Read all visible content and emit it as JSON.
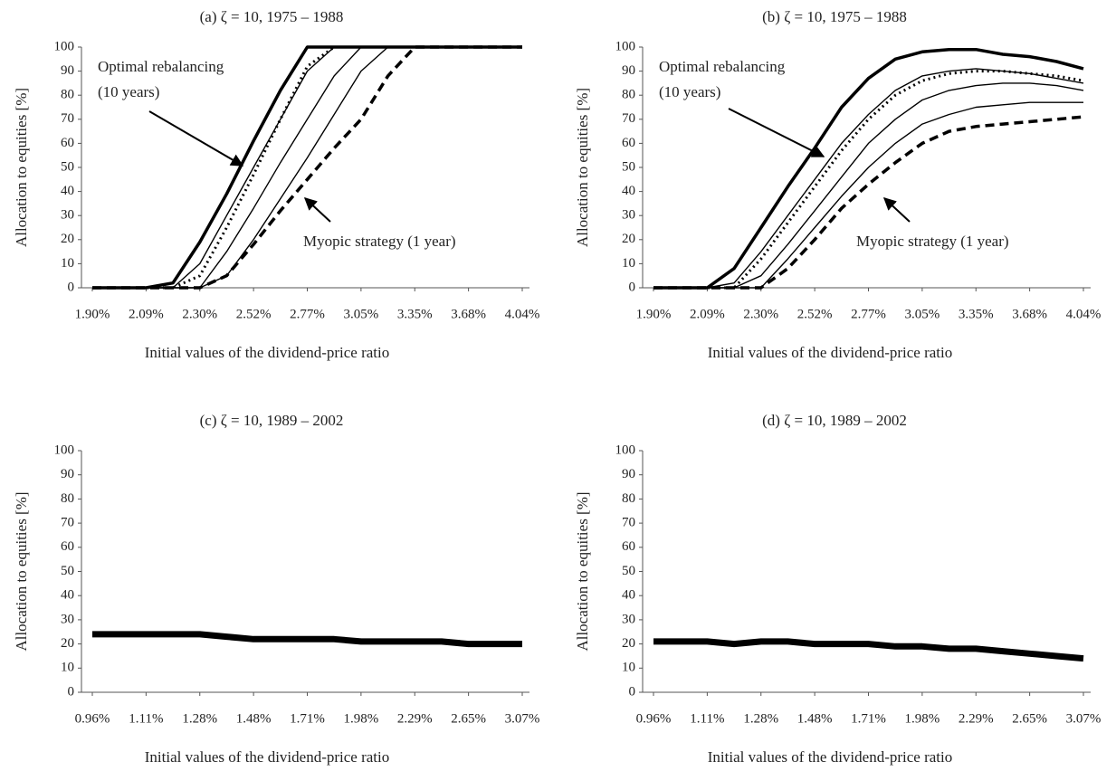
{
  "chart_data": [
    {
      "type": "line",
      "title": "(a) ζ = 10, 1975 – 1988",
      "xlabel": "Initial values of the dividend-price ratio",
      "ylabel": "Allocation to equities [%]",
      "categories": [
        "1.90%",
        null,
        "2.09%",
        null,
        "2.30%",
        null,
        "2.52%",
        null,
        "2.77%",
        null,
        "3.05%",
        null,
        "3.35%",
        null,
        "3.68%",
        null,
        "4.04%"
      ],
      "ylim": [
        0,
        100
      ],
      "yticks": [
        0,
        10,
        20,
        30,
        40,
        50,
        60,
        70,
        80,
        90,
        100
      ],
      "annotations": [
        "Optimal rebalancing",
        "(10 years)",
        "Myopic strategy (1 year)"
      ],
      "series": [
        {
          "color": "#000000",
          "style": "thick",
          "values": [
            0,
            0,
            0,
            2,
            19,
            39,
            61,
            82,
            100,
            100,
            100,
            100,
            100,
            100,
            100,
            100,
            100
          ]
        },
        {
          "color": "#000000",
          "style": "thin",
          "values": [
            0,
            0,
            0,
            0,
            10,
            30,
            50,
            70,
            90,
            100,
            100,
            100,
            100,
            100,
            100,
            100,
            100
          ]
        },
        {
          "color": "#000000",
          "style": "dotted",
          "values": [
            0,
            0,
            0,
            0,
            5,
            25,
            47,
            70,
            92,
            100,
            100,
            100,
            100,
            100,
            100,
            100,
            100
          ]
        },
        {
          "color": "#000000",
          "style": "thin",
          "values": [
            0,
            0,
            0,
            0,
            0,
            15,
            33,
            52,
            70,
            88,
            100,
            100,
            100,
            100,
            100,
            100,
            100
          ]
        },
        {
          "color": "#000000",
          "style": "thin",
          "values": [
            0,
            0,
            0,
            0,
            0,
            5,
            20,
            37,
            54,
            72,
            90,
            100,
            100,
            100,
            100,
            100,
            100
          ]
        },
        {
          "color": "#000000",
          "style": "dashed",
          "values": [
            0,
            0,
            0,
            0,
            0,
            5,
            18,
            32,
            45,
            58,
            70,
            88,
            100,
            100,
            100,
            100,
            100
          ]
        }
      ]
    },
    {
      "type": "line",
      "title": "(b) ζ = 10, 1975 – 1988",
      "xlabel": "Initial values of the dividend-price ratio",
      "ylabel": "Allocation to equities [%]",
      "categories": [
        "1.90%",
        null,
        "2.09%",
        null,
        "2.30%",
        null,
        "2.52%",
        null,
        "2.77%",
        null,
        "3.05%",
        null,
        "3.35%",
        null,
        "3.68%",
        null,
        "4.04%"
      ],
      "ylim": [
        0,
        100
      ],
      "yticks": [
        0,
        10,
        20,
        30,
        40,
        50,
        60,
        70,
        80,
        90,
        100
      ],
      "annotations": [
        "Optimal rebalancing",
        "(10 years)",
        "Myopic strategy (1 year)"
      ],
      "series": [
        {
          "color": "#000000",
          "style": "thick",
          "values": [
            0,
            0,
            0,
            8,
            25,
            42,
            58,
            75,
            87,
            95,
            98,
            99,
            99,
            97,
            96,
            94,
            91
          ]
        },
        {
          "color": "#000000",
          "style": "thin",
          "values": [
            0,
            0,
            0,
            2,
            15,
            30,
            45,
            60,
            72,
            82,
            88,
            90,
            91,
            90,
            89,
            87,
            85
          ]
        },
        {
          "color": "#000000",
          "style": "dotted",
          "values": [
            0,
            0,
            0,
            0,
            12,
            27,
            42,
            57,
            70,
            80,
            86,
            89,
            90,
            90,
            89,
            88,
            86
          ]
        },
        {
          "color": "#000000",
          "style": "thin",
          "values": [
            0,
            0,
            0,
            0,
            5,
            18,
            32,
            46,
            60,
            70,
            78,
            82,
            84,
            85,
            85,
            84,
            82
          ]
        },
        {
          "color": "#000000",
          "style": "thin",
          "values": [
            0,
            0,
            0,
            0,
            0,
            12,
            25,
            38,
            50,
            60,
            68,
            72,
            75,
            76,
            77,
            77,
            77
          ]
        },
        {
          "color": "#000000",
          "style": "dashed",
          "values": [
            0,
            0,
            0,
            0,
            0,
            8,
            20,
            33,
            43,
            52,
            60,
            65,
            67,
            68,
            69,
            70,
            71
          ]
        }
      ]
    },
    {
      "type": "line",
      "title": "(c) ζ = 10, 1989 – 2002",
      "xlabel": "Initial values of the dividend-price ratio",
      "ylabel": "Allocation to equities [%]",
      "categories": [
        "0.96%",
        null,
        "1.11%",
        null,
        "1.28%",
        null,
        "1.48%",
        null,
        "1.71%",
        null,
        "1.98%",
        null,
        "2.29%",
        null,
        "2.65%",
        null,
        "3.07%"
      ],
      "ylim": [
        0,
        100
      ],
      "yticks": [
        0,
        10,
        20,
        30,
        40,
        50,
        60,
        70,
        80,
        90,
        100
      ],
      "series": [
        {
          "color": "#000000",
          "style": "band",
          "values": [
            24,
            24,
            24,
            24,
            24,
            23,
            22,
            22,
            22,
            22,
            21,
            21,
            21,
            21,
            20,
            20,
            20
          ]
        }
      ]
    },
    {
      "type": "line",
      "title": "(d) ζ = 10, 1989 – 2002",
      "xlabel": "Initial values of the dividend-price ratio",
      "ylabel": "Allocation to equities [%]",
      "categories": [
        "0.96%",
        null,
        "1.11%",
        null,
        "1.28%",
        null,
        "1.48%",
        null,
        "1.71%",
        null,
        "1.98%",
        null,
        "2.29%",
        null,
        "2.65%",
        null,
        "3.07%"
      ],
      "ylim": [
        0,
        100
      ],
      "yticks": [
        0,
        10,
        20,
        30,
        40,
        50,
        60,
        70,
        80,
        90,
        100
      ],
      "series": [
        {
          "color": "#000000",
          "style": "band",
          "values": [
            21,
            21,
            21,
            20,
            21,
            21,
            20,
            20,
            20,
            19,
            19,
            18,
            18,
            17,
            16,
            15,
            14
          ]
        }
      ]
    }
  ]
}
